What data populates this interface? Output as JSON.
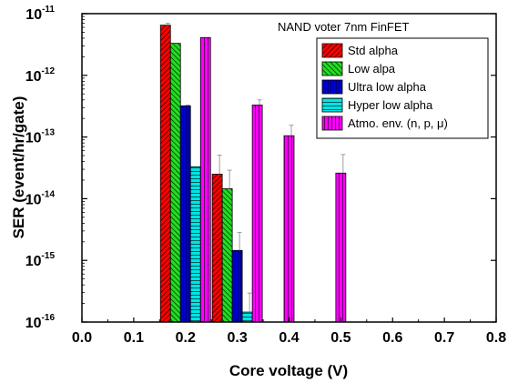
{
  "chart_data": {
    "type": "bar",
    "annotation": "NAND voter 7nm FinFET",
    "xlabel": "Core voltage (V)",
    "ylabel": "SER (event/hr/gate)",
    "xlim": [
      0.0,
      0.8
    ],
    "ylim": [
      1e-16,
      1e-11
    ],
    "y_scale": "log",
    "x_ticks": [
      "0.0",
      "0.1",
      "0.2",
      "0.3",
      "0.4",
      "0.5",
      "0.6",
      "0.7",
      "0.8"
    ],
    "y_ticks": [
      {
        "base": "10",
        "exp": "-16"
      },
      {
        "base": "10",
        "exp": "-15"
      },
      {
        "base": "10",
        "exp": "-14"
      },
      {
        "base": "10",
        "exp": "-13"
      },
      {
        "base": "10",
        "exp": "-12"
      },
      {
        "base": "10",
        "exp": "-11"
      }
    ],
    "legend_position": "top-right",
    "series": [
      {
        "name": "Std alpha",
        "color": "#ff0000",
        "points": [
          {
            "x": 0.2,
            "y": 6.5e-12,
            "err": 5e-13
          },
          {
            "x": 0.3,
            "y": 2.5e-14,
            "err": 2.6e-14
          }
        ]
      },
      {
        "name": "Low alpa",
        "color": "#22dd22",
        "points": [
          {
            "x": 0.2,
            "y": 3.3e-12,
            "err": 0
          },
          {
            "x": 0.3,
            "y": 1.45e-14,
            "err": 1.45e-14
          }
        ]
      },
      {
        "name": "Ultra low alpha",
        "color": "#0000cc",
        "points": [
          {
            "x": 0.2,
            "y": 3.2e-13,
            "err": 1e-14
          },
          {
            "x": 0.3,
            "y": 1.45e-15,
            "err": 1.4e-15
          }
        ]
      },
      {
        "name": "Hyper low alpha",
        "color": "#00e5e5",
        "points": [
          {
            "x": 0.2,
            "y": 3.3e-14,
            "err": 0
          },
          {
            "x": 0.3,
            "y": 1.45e-16,
            "err": 1.5e-16
          }
        ]
      },
      {
        "name": "Atmo. env. (n, p, μ)",
        "color": "#ff00ff",
        "points": [
          {
            "x": 0.2,
            "y": 4.1e-12,
            "err": 0
          },
          {
            "x": 0.3,
            "y": 3.3e-13,
            "err": 7e-14
          },
          {
            "x": 0.4,
            "y": 1.05e-13,
            "err": 5e-14
          },
          {
            "x": 0.5,
            "y": 2.6e-14,
            "err": 2.6e-14
          }
        ]
      }
    ]
  }
}
